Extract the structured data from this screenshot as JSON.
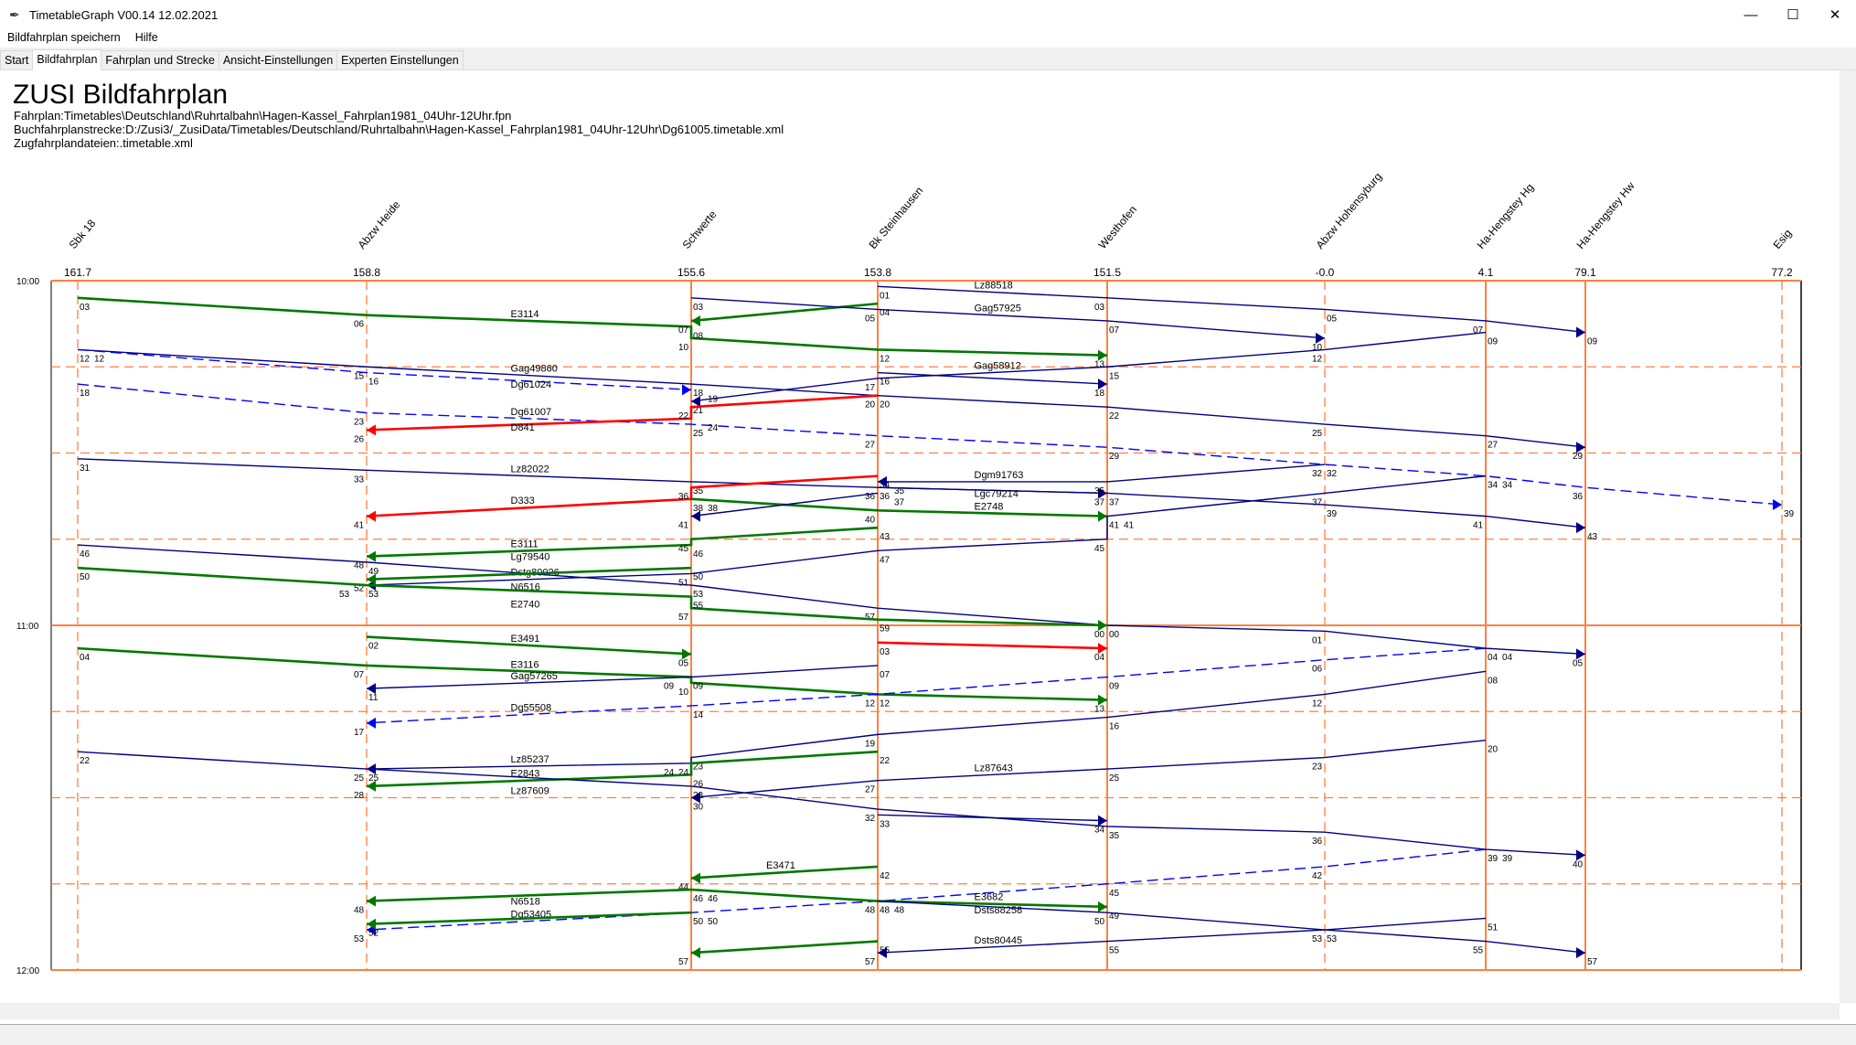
{
  "window": {
    "title": "TimetableGraph V00.14 12.02.2021",
    "minimize": "—",
    "maximize": "☐",
    "close": "✕"
  },
  "menu": [
    "Bildfahrplan speichern",
    "Hilfe"
  ],
  "tabs": [
    "Start",
    "Bildfahrplan",
    "Fahrplan und Strecke",
    "Ansicht-Einstellungen",
    "Experten Einstellungen"
  ],
  "active_tab": 1,
  "header": {
    "title": "ZUSI Bildfahrplan",
    "fahrplan": "Fahrplan:Timetables\\Deutschland\\Ruhrtalbahn\\Hagen-Kassel_Fahrplan1981_04Uhr-12Uhr.fpn",
    "strecke": "Buchfahrplanstrecke:D:/Zusi3/_ZusiData/Timetables/Deutschland/Ruhrtalbahn\\Hagen-Kassel_Fahrplan1981_04Uhr-12Uhr\\Dg61005.timetable.xml",
    "dateien": "Zugfahrplandateien:.timetable.xml"
  },
  "colors": {
    "grid": "#ff8040",
    "green": "#007800",
    "navy": "#000080",
    "red": "#ff0000",
    "blue": "#0000ff"
  },
  "chart_data": {
    "type": "line",
    "title": "Bildfahrplan",
    "time_labels": [
      "10:00",
      "11:00",
      "12:00"
    ],
    "time_range_minutes": [
      0,
      120
    ],
    "grid_interval_minutes": 15,
    "stations": [
      {
        "name": "Sbk 18",
        "km": "161.7",
        "main": false
      },
      {
        "name": "Abzw Heide",
        "km": "158.8",
        "main": false
      },
      {
        "name": "Schwerte",
        "km": "155.6",
        "main": true
      },
      {
        "name": "Bk Steinhausen",
        "km": "153.8",
        "main": true
      },
      {
        "name": "Westhofen",
        "km": "151.5",
        "main": true
      },
      {
        "name": "Abzw Hohensyburg",
        "km": "-0.0",
        "main": false
      },
      {
        "name": "Ha-Hengstey Hg",
        "km": "4.1",
        "main": true
      },
      {
        "name": "Ha-Hengstey Hw",
        "km": "79.1",
        "main": true
      },
      {
        "name": "Esig",
        "km": "77.2",
        "main": false
      }
    ],
    "trains": [
      {
        "name": "E3114",
        "color": "green",
        "dashed": false,
        "points": [
          [
            0,
            3
          ],
          [
            1,
            6
          ],
          [
            2,
            8
          ],
          [
            2,
            10
          ],
          [
            3,
            12
          ],
          [
            4,
            13
          ]
        ]
      },
      {
        "name": "",
        "color": "green",
        "dashed": false,
        "points": [
          [
            3,
            4
          ],
          [
            2,
            7
          ]
        ]
      },
      {
        "name": "Gag57925",
        "color": "navy",
        "dashed": false,
        "points": [
          [
            2,
            3
          ],
          [
            3,
            5
          ],
          [
            4,
            7
          ],
          [
            5,
            10
          ]
        ]
      },
      {
        "name": "Lz88518",
        "color": "navy",
        "dashed": false,
        "points": [
          [
            3,
            1
          ],
          [
            4,
            3
          ],
          [
            5,
            5
          ],
          [
            6,
            7
          ],
          [
            7,
            9
          ]
        ]
      },
      {
        "name": "Gag58912",
        "color": "navy",
        "dashed": false,
        "points": [
          [
            6,
            9
          ],
          [
            5,
            12
          ],
          [
            4,
            15
          ],
          [
            3,
            17
          ],
          [
            2,
            21
          ]
        ]
      },
      {
        "name": "",
        "color": "navy",
        "dashed": false,
        "points": [
          [
            3,
            16
          ],
          [
            4,
            18
          ]
        ]
      },
      {
        "name": "Gag49860",
        "color": "navy",
        "dashed": false,
        "points": [
          [
            0,
            12
          ],
          [
            1,
            15
          ],
          [
            2,
            18
          ],
          [
            3,
            20
          ],
          [
            4,
            22
          ],
          [
            5,
            25
          ],
          [
            6,
            27
          ],
          [
            7,
            29
          ]
        ]
      },
      {
        "name": "Dg61024",
        "color": "blue",
        "dashed": true,
        "points": [
          [
            0,
            12
          ],
          [
            1,
            16
          ],
          [
            2,
            19
          ]
        ]
      },
      {
        "name": "Dg61007",
        "color": "blue",
        "dashed": true,
        "points": [
          [
            0,
            18
          ],
          [
            1,
            23
          ],
          [
            2,
            25
          ],
          [
            3,
            27
          ],
          [
            4,
            29
          ],
          [
            5,
            32
          ],
          [
            6,
            34
          ],
          [
            7,
            36
          ],
          [
            8,
            39
          ]
        ]
      },
      {
        "name": "D841",
        "color": "red",
        "dashed": false,
        "points": [
          [
            3,
            20
          ],
          [
            2,
            22
          ],
          [
            2,
            24
          ],
          [
            1,
            26
          ]
        ]
      },
      {
        "name": "Lz82022",
        "color": "navy",
        "dashed": false,
        "points": [
          [
            0,
            31
          ],
          [
            1,
            33
          ],
          [
            2,
            35
          ],
          [
            3,
            36
          ],
          [
            4,
            37
          ]
        ]
      },
      {
        "name": "D333",
        "color": "red",
        "dashed": false,
        "points": [
          [
            3,
            34
          ],
          [
            2,
            36
          ],
          [
            2,
            38
          ],
          [
            1,
            41
          ]
        ]
      },
      {
        "name": "Dgm91763",
        "color": "navy",
        "dashed": false,
        "points": [
          [
            5,
            32
          ],
          [
            4,
            35
          ],
          [
            3,
            35
          ]
        ]
      },
      {
        "name": "E2748",
        "color": "green",
        "dashed": false,
        "points": [
          [
            2,
            38
          ],
          [
            3,
            40
          ],
          [
            4,
            41
          ]
        ]
      },
      {
        "name": "Dstg80026",
        "color": "navy",
        "dashed": false,
        "points": [
          [
            6,
            34
          ],
          [
            5,
            37
          ],
          [
            4,
            41
          ],
          [
            4,
            45
          ],
          [
            3,
            47
          ],
          [
            2,
            51
          ],
          [
            1,
            53
          ]
        ]
      },
      {
        "name": "Lgc79214",
        "color": "navy",
        "dashed": false,
        "points": [
          [
            3,
            36
          ],
          [
            4,
            37
          ],
          [
            5,
            39
          ],
          [
            6,
            41
          ],
          [
            7,
            43
          ]
        ]
      },
      {
        "name": "",
        "color": "navy",
        "dashed": false,
        "points": [
          [
            3,
            37
          ],
          [
            2,
            41
          ]
        ]
      },
      {
        "name": "E3111",
        "color": "green",
        "dashed": false,
        "points": [
          [
            3,
            43
          ],
          [
            2,
            45
          ],
          [
            2,
            46
          ],
          [
            1,
            48
          ]
        ]
      },
      {
        "name": "Lg79540",
        "color": "navy",
        "dashed": false,
        "points": [
          [
            0,
            46
          ],
          [
            1,
            49
          ],
          [
            2,
            53
          ],
          [
            3,
            57
          ],
          [
            4,
            60
          ],
          [
            5,
            61
          ],
          [
            6,
            64
          ],
          [
            7,
            65
          ]
        ]
      },
      {
        "name": "N6516",
        "color": "green",
        "dashed": false,
        "points": [
          [
            2,
            50
          ],
          [
            1,
            52
          ]
        ]
      },
      {
        "name": "E2740",
        "color": "green",
        "dashed": false,
        "points": [
          [
            0,
            50
          ],
          [
            1,
            53
          ],
          [
            2,
            55
          ],
          [
            2,
            57
          ],
          [
            3,
            59
          ],
          [
            4,
            60
          ]
        ]
      },
      {
        "name": "E3491",
        "color": "green",
        "dashed": false,
        "points": [
          [
            1,
            62
          ],
          [
            2,
            65
          ]
        ]
      },
      {
        "name": "E3116",
        "color": "green",
        "dashed": false,
        "points": [
          [
            0,
            64
          ],
          [
            1,
            67
          ],
          [
            2,
            69
          ],
          [
            2,
            70
          ],
          [
            3,
            72
          ],
          [
            4,
            73
          ]
        ]
      },
      {
        "name": "",
        "color": "red",
        "dashed": false,
        "points": [
          [
            3,
            63
          ],
          [
            4,
            64
          ]
        ]
      },
      {
        "name": "Gag57265",
        "color": "navy",
        "dashed": false,
        "points": [
          [
            3,
            67
          ],
          [
            2,
            69
          ],
          [
            1,
            71
          ]
        ]
      },
      {
        "name": "Dg55508",
        "color": "blue",
        "dashed": true,
        "points": [
          [
            6,
            64
          ],
          [
            5,
            66
          ],
          [
            4,
            69
          ],
          [
            3,
            72
          ],
          [
            2,
            74
          ],
          [
            1,
            77
          ]
        ]
      },
      {
        "name": "Lz85237",
        "color": "navy",
        "dashed": false,
        "points": [
          [
            6,
            68
          ],
          [
            5,
            72
          ],
          [
            4,
            76
          ],
          [
            3,
            79
          ],
          [
            2,
            83
          ],
          [
            2,
            84
          ],
          [
            1,
            85
          ]
        ]
      },
      {
        "name": "E2843",
        "color": "green",
        "dashed": false,
        "points": [
          [
            3,
            82
          ],
          [
            2,
            84
          ],
          [
            2,
            86
          ],
          [
            1,
            88
          ]
        ]
      },
      {
        "name": "Lz87643",
        "color": "navy",
        "dashed": false,
        "points": [
          [
            6,
            80
          ],
          [
            5,
            83
          ],
          [
            4,
            85
          ],
          [
            3,
            87
          ],
          [
            2,
            90
          ]
        ]
      },
      {
        "name": "Lz87609",
        "color": "navy",
        "dashed": false,
        "points": [
          [
            0,
            82
          ],
          [
            1,
            85
          ],
          [
            2,
            88
          ],
          [
            3,
            92
          ],
          [
            4,
            95
          ],
          [
            5,
            96
          ],
          [
            6,
            99
          ],
          [
            7,
            100
          ]
        ]
      },
      {
        "name": "",
        "color": "navy",
        "dashed": false,
        "points": [
          [
            3,
            93
          ],
          [
            4,
            94
          ]
        ]
      },
      {
        "name": "E3471",
        "color": "green",
        "dashed": false,
        "points": [
          [
            3,
            102
          ],
          [
            2,
            104
          ]
        ]
      },
      {
        "name": "Dg53405",
        "color": "blue",
        "dashed": true,
        "points": [
          [
            6,
            99
          ],
          [
            5,
            102
          ],
          [
            4,
            105
          ],
          [
            3,
            108
          ],
          [
            2,
            110
          ],
          [
            1,
            113
          ]
        ]
      },
      {
        "name": "E3682",
        "color": "green",
        "dashed": false,
        "points": [
          [
            2,
            106
          ],
          [
            3,
            108
          ],
          [
            4,
            109
          ]
        ]
      },
      {
        "name": "",
        "color": "green",
        "dashed": false,
        "points": [
          [
            2,
            106
          ],
          [
            1,
            108
          ]
        ]
      },
      {
        "name": "N6518",
        "color": "green",
        "dashed": false,
        "points": [
          [
            2,
            110
          ],
          [
            1,
            112
          ]
        ]
      },
      {
        "name": "Dsts88258",
        "color": "navy",
        "dashed": false,
        "points": [
          [
            3,
            108
          ],
          [
            4,
            110
          ],
          [
            5,
            113
          ],
          [
            6,
            115
          ],
          [
            7,
            117
          ]
        ]
      },
      {
        "name": "Dsts80445",
        "color": "navy",
        "dashed": false,
        "points": [
          [
            6,
            111
          ],
          [
            5,
            113
          ],
          [
            4,
            115
          ],
          [
            3,
            117
          ]
        ]
      },
      {
        "name": "",
        "color": "green",
        "dashed": false,
        "points": [
          [
            3,
            115
          ],
          [
            2,
            117
          ]
        ]
      }
    ]
  }
}
